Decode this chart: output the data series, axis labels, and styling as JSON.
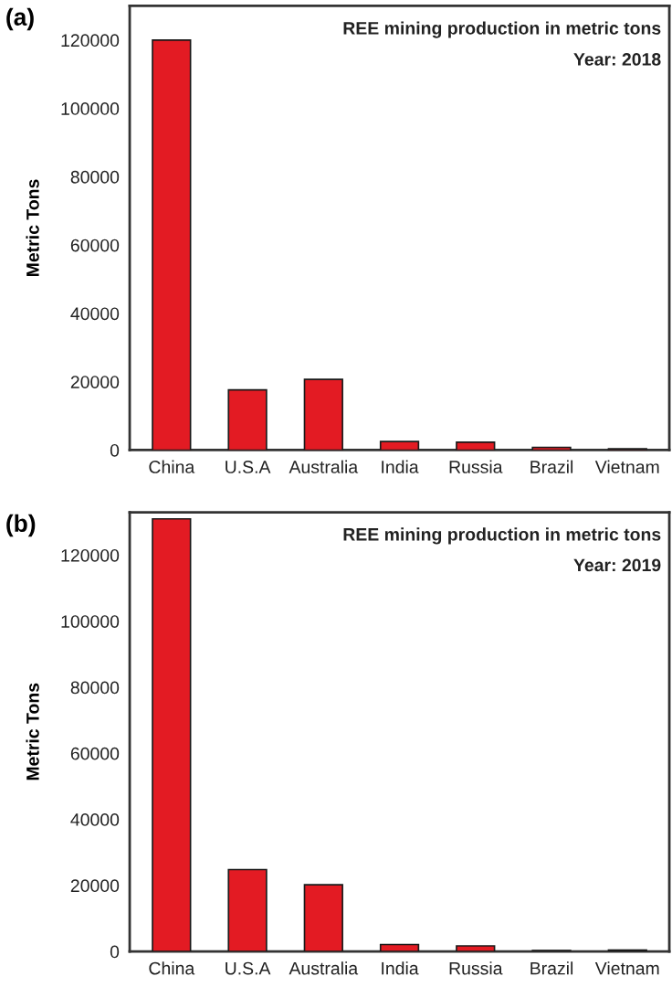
{
  "chart_data": [
    {
      "type": "bar",
      "title": "REE mining production in metric tons",
      "subtitle": "Year: 2018",
      "ylabel": "Metric Tons",
      "annotations": [
        "(a)"
      ],
      "categories": [
        "China",
        "U.S.A",
        "Australia",
        "India",
        "Russia",
        "Brazil",
        "Vietnam"
      ],
      "values": [
        120000,
        17600,
        20700,
        2500,
        2300,
        800,
        400
      ],
      "color": "#e31b23",
      "ylim": [
        0,
        130000
      ],
      "yticks": [
        0,
        20000,
        40000,
        60000,
        80000,
        100000,
        120000
      ],
      "grid": false,
      "legend": false
    },
    {
      "type": "bar",
      "title": "REE mining production in metric tons",
      "subtitle": "Year: 2019",
      "ylabel": "Metric Tons",
      "annotations": [
        "(b)"
      ],
      "categories": [
        "China",
        "U.S.A",
        "Australia",
        "India",
        "Russia",
        "Brazil",
        "Vietnam"
      ],
      "values": [
        131000,
        24800,
        20200,
        2100,
        1700,
        300,
        400
      ],
      "color": "#e31b23",
      "ylim": [
        0,
        133000
      ],
      "yticks": [
        0,
        20000,
        40000,
        60000,
        80000,
        100000,
        120000
      ],
      "grid": false,
      "legend": false
    }
  ]
}
